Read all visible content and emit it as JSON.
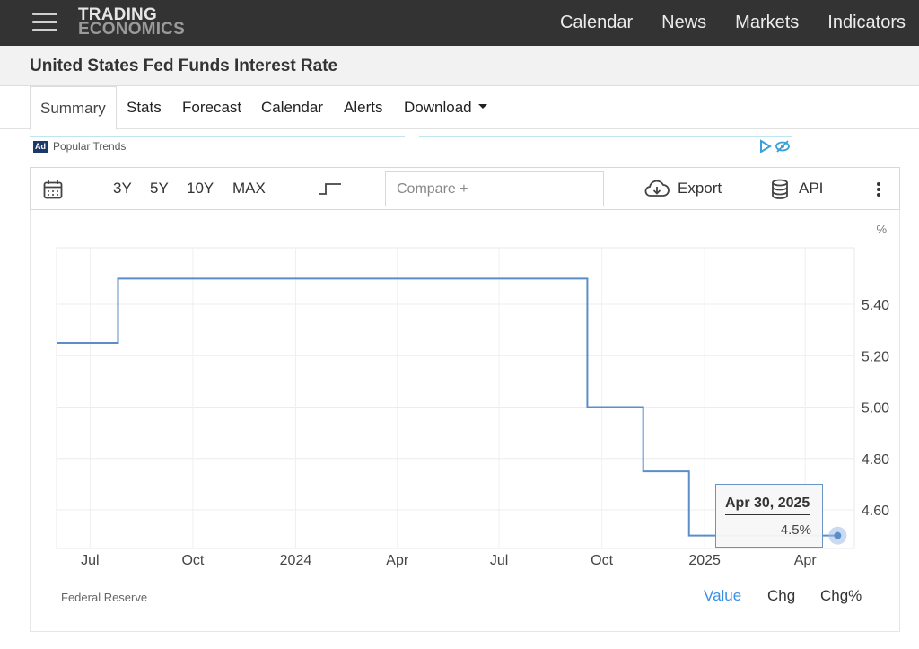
{
  "header": {
    "logo_line1": "TRADING",
    "logo_line2": "ECONOMICS",
    "nav": [
      "Calendar",
      "News",
      "Markets",
      "Indicators"
    ]
  },
  "page_title": "United States Fed Funds Interest Rate",
  "tabs": [
    "Summary",
    "Stats",
    "Forecast",
    "Calendar",
    "Alerts",
    "Download"
  ],
  "active_tab": "Summary",
  "ad": {
    "badge": "Ad",
    "text": "Popular Trends"
  },
  "toolbar": {
    "ranges": [
      "3Y",
      "5Y",
      "10Y",
      "MAX"
    ],
    "compare_placeholder": "Compare +",
    "export_label": "Export",
    "api_label": "API"
  },
  "chart": {
    "source": "Federal Reserve",
    "modes": [
      "Value",
      "Chg",
      "Chg%"
    ],
    "active_mode": "Value",
    "line_color": "#5b8ec9",
    "accent_color": "#3a8ee6",
    "tooltip": {
      "date": "Apr 30, 2025",
      "value": "4.5%"
    }
  },
  "chart_data": {
    "type": "line",
    "step": true,
    "unit_label": "%",
    "x_tick_labels": [
      "Jul",
      "Oct",
      "2024",
      "Apr",
      "Jul",
      "Oct",
      "2025",
      "Apr"
    ],
    "y_ticks": [
      4.6,
      4.8,
      5.0,
      5.2,
      5.4
    ],
    "ylim": [
      4.45,
      5.62
    ],
    "xlim": [
      "2023-06-01",
      "2025-05-15"
    ],
    "grid": true,
    "y_axis_position": "right",
    "series": [
      {
        "x": [
          "2023-06-01",
          "2023-07-26",
          "2024-09-18",
          "2024-11-07",
          "2024-12-18",
          "2025-04-30"
        ],
        "y": [
          5.25,
          5.5,
          5.0,
          4.75,
          4.5,
          4.5
        ]
      }
    ]
  }
}
